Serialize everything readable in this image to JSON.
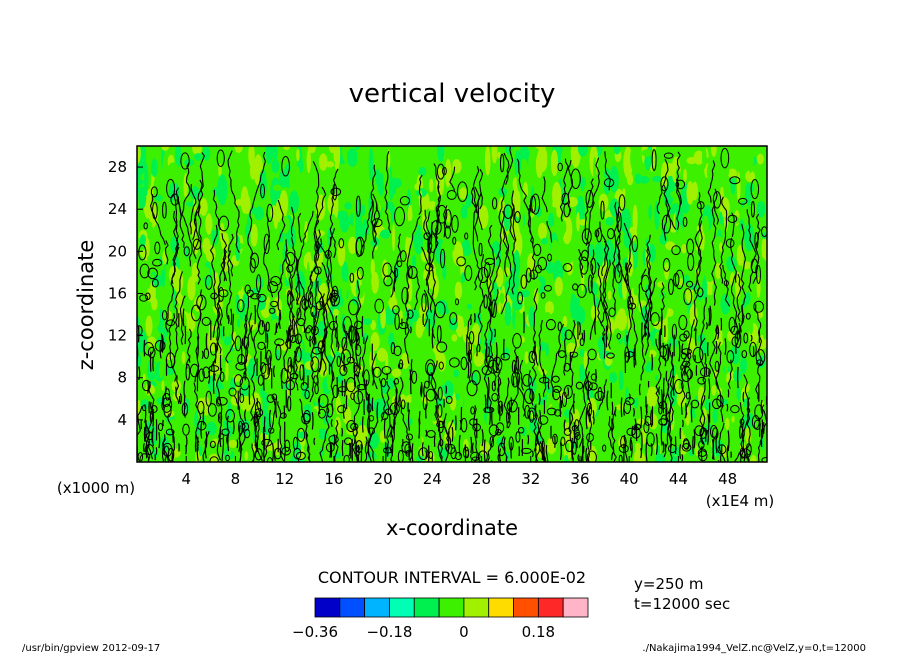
{
  "chart_data": {
    "type": "heatmap",
    "title": "vertical velocity",
    "xlabel": "x-coordinate",
    "ylabel": "z-coordinate",
    "x_unit_left": "(x1000 m)",
    "x_unit_right": "(x1E4 m)",
    "xlim": [
      0,
      51.2
    ],
    "ylim": [
      0,
      30
    ],
    "x_ticks": [
      4,
      8,
      12,
      16,
      20,
      24,
      28,
      32,
      36,
      40,
      44,
      48
    ],
    "y_ticks": [
      4,
      8,
      12,
      16,
      20,
      24,
      28
    ],
    "contour_interval_text": "CONTOUR INTERVAL = 6.000E-02",
    "info_lines": [
      "y=250 m",
      "t=12000 sec"
    ],
    "colorbar": {
      "levels": [
        -0.36,
        -0.3,
        -0.24,
        -0.18,
        -0.12,
        -0.06,
        0.0,
        0.06,
        0.12,
        0.18,
        0.24,
        0.3
      ],
      "colors": [
        "#0000c8",
        "#0050ff",
        "#00b4ff",
        "#00ffb4",
        "#00f050",
        "#3cf000",
        "#a0f000",
        "#ffdc00",
        "#ff5000",
        "#ff2828",
        "#ffb4c8"
      ],
      "tick_labels": [
        "-0.36",
        "-0.18",
        "0",
        "0.18"
      ],
      "tick_values": [
        -0.36,
        -0.18,
        0.0,
        0.18
      ]
    },
    "field_colors": [
      "#00f050",
      "#3cf000",
      "#a0f000"
    ]
  },
  "footer": {
    "left": "/usr/bin/gpview  2012-09-17",
    "right": "./Nakajima1994_VelZ.nc@VelZ,y=0,t=12000"
  }
}
